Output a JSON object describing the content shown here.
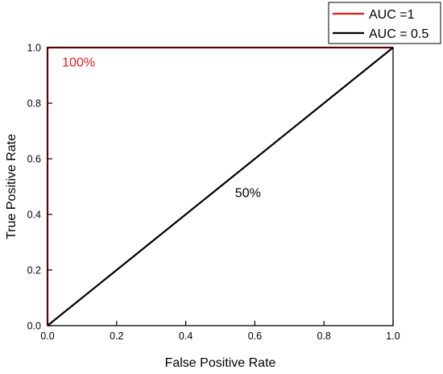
{
  "chart_data": {
    "type": "line",
    "title": "",
    "xlabel": "False Positive Rate",
    "ylabel": "True Positive Rate",
    "xlim": [
      0.0,
      1.0
    ],
    "ylim": [
      0.0,
      1.0
    ],
    "xticks": [
      "0.0",
      "0.2",
      "0.4",
      "0.6",
      "0.8",
      "1.0"
    ],
    "yticks": [
      "0.0",
      "0.2",
      "0.4",
      "0.6",
      "0.8",
      "1.0"
    ],
    "grid": false,
    "legend_position": "top-right",
    "series": [
      {
        "name": "AUC =1",
        "color": "#e8191b",
        "x": [
          0.0,
          0.0,
          1.0
        ],
        "y": [
          0.0,
          1.0,
          1.0
        ]
      },
      {
        "name": "AUC = 0.5",
        "color": "#000000",
        "x": [
          0.0,
          1.0
        ],
        "y": [
          0.0,
          1.0
        ]
      }
    ],
    "annotations": [
      {
        "text": "100%",
        "x": 0.09,
        "y": 0.95,
        "color": "#e8191b"
      },
      {
        "text": "50%",
        "x": 0.58,
        "y": 0.48,
        "color": "#000000"
      }
    ]
  }
}
